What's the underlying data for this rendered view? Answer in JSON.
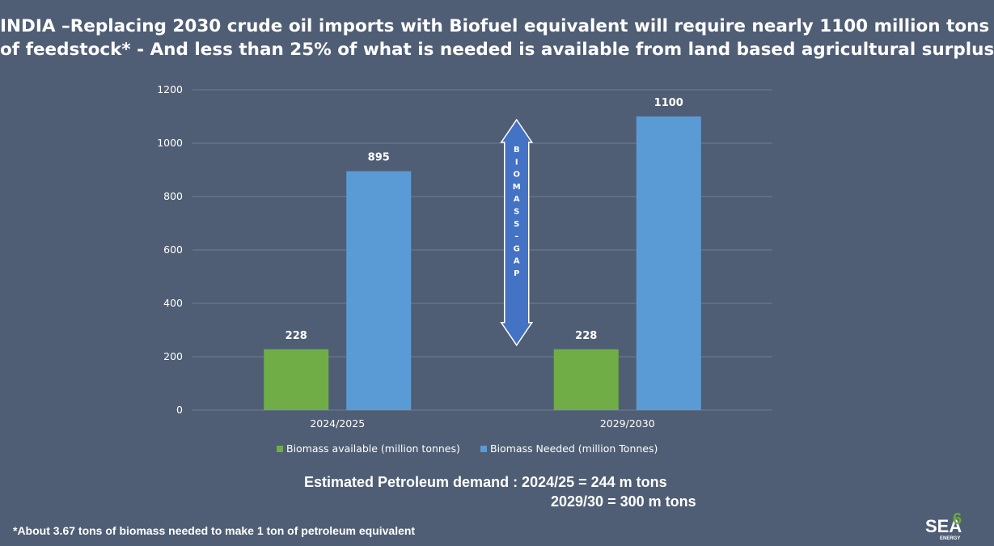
{
  "title": {
    "line1": "INDIA –Replacing 2030 crude oil imports with  Biofuel equivalent  will require nearly  1100 million tons",
    "line2": "of feedstock* - And less than 25% of what is needed is available  from land based agricultural surplus"
  },
  "chart_data": {
    "type": "bar",
    "categories": [
      "2024/2025",
      "2029/2030"
    ],
    "series": [
      {
        "name": "Biomass available (million tonnes)",
        "values": [
          228,
          228
        ],
        "color": "#70ad47"
      },
      {
        "name": "Biomass  Needed (million Tonnes)",
        "values": [
          895,
          1100
        ],
        "color": "#5b9bd5"
      }
    ],
    "ylim": [
      0,
      1200
    ],
    "yticks": [
      0,
      200,
      400,
      600,
      800,
      1000,
      1200
    ],
    "grid": true,
    "legend": "bottom",
    "annotation": {
      "label": [
        "B",
        "I",
        "O",
        "M",
        "A",
        "S",
        "S",
        "–",
        "G",
        "A",
        "P"
      ],
      "range": [
        228,
        1100
      ],
      "category": "2029/2030",
      "color": "#4472c4"
    }
  },
  "demand": {
    "line1": "Estimated  Petroleum demand :  2024/25 = 244 m tons",
    "line2": "2029/30 = 300 m  tons"
  },
  "footnote": "*About 3.67 tons of biomass needed to make 1 ton of petroleum equivalent",
  "logo": {
    "main": "SEA",
    "sup": "6",
    "sub": "ENERGY"
  },
  "colors": {
    "background": "#4f5e74",
    "grid": "#6f7d91",
    "text": "#ffffff"
  }
}
